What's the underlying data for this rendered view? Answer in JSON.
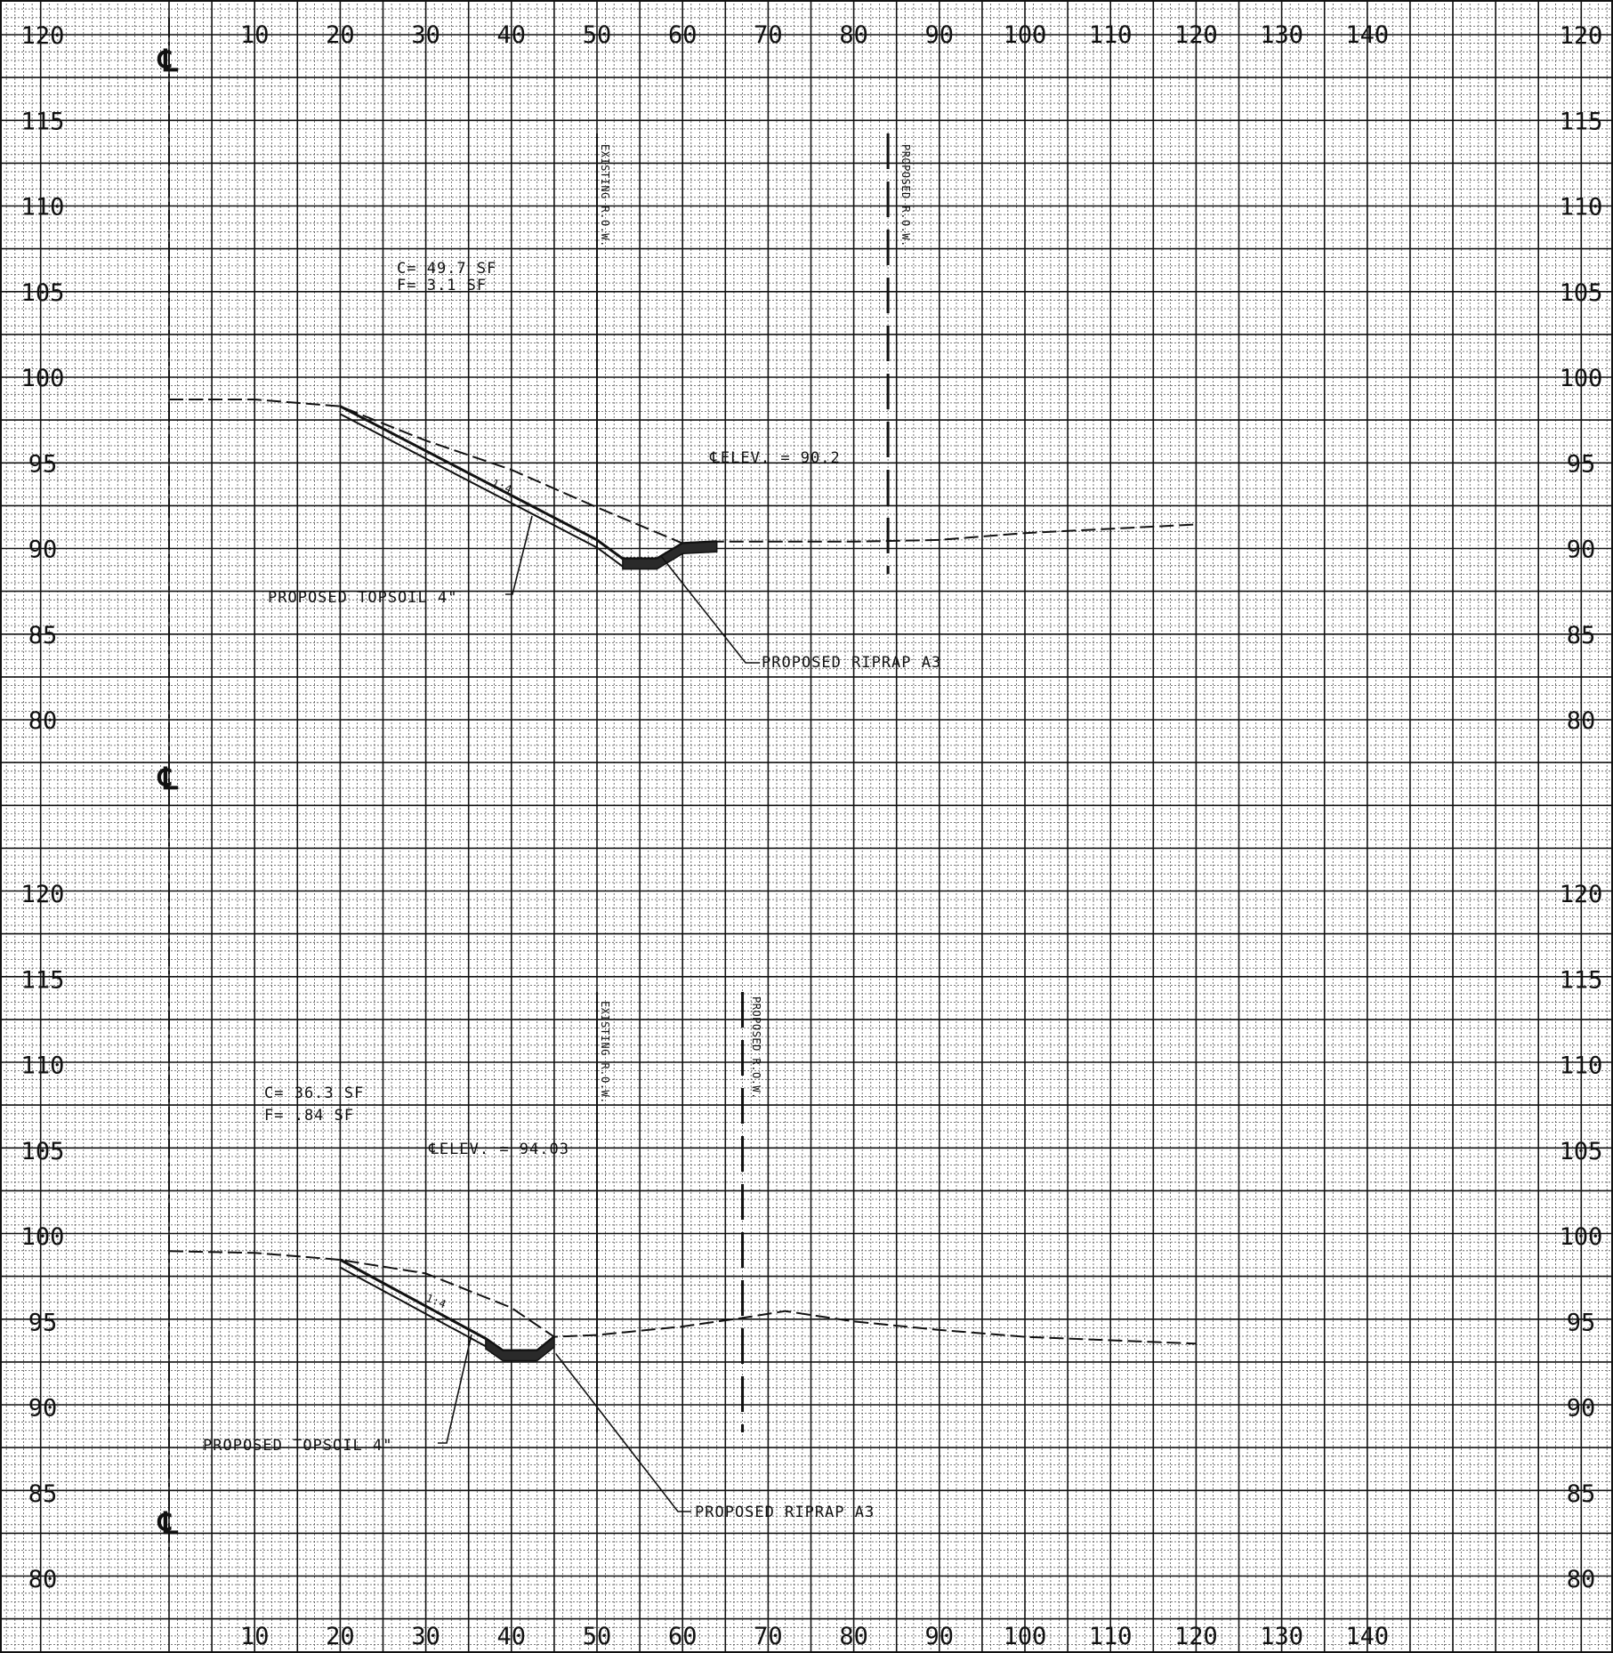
{
  "sheet": {
    "x_ticks": [
      10,
      20,
      30,
      40,
      50,
      60,
      70,
      80,
      90,
      100,
      110,
      120,
      130,
      140
    ],
    "y_ticks": [
      120,
      115,
      110,
      105,
      100,
      95,
      90,
      85,
      80
    ],
    "centerline_symbol": "℄"
  },
  "sections": [
    {
      "id": "upper",
      "areas": {
        "cut": "C= 49.7 SF",
        "fill": "F= 3.1 SF"
      },
      "cl_elev": "℄ELEV. = 90.2",
      "existing_row_label": "EXISTING R.O.W.",
      "existing_row_offset": 50,
      "proposed_row_label": "PROPOSED R.O.W.",
      "proposed_row_offset": 84,
      "slope_label": "1:4",
      "topsoil_label": "PROPOSED TOPSOIL 4\"",
      "riprap_label": "PROPOSED RIPRAP A3",
      "existing_ground": [
        [
          0,
          98.7
        ],
        [
          10,
          98.7
        ],
        [
          20,
          98.3
        ],
        [
          30,
          96.3
        ],
        [
          40,
          94.6
        ],
        [
          50,
          92.4
        ],
        [
          60,
          90.3
        ],
        [
          64,
          90.4
        ],
        [
          80,
          90.4
        ],
        [
          90,
          90.5
        ],
        [
          100,
          90.9
        ],
        [
          120,
          91.4
        ]
      ],
      "proposed_grade": [
        [
          20,
          98.3
        ],
        [
          50,
          90.5
        ],
        [
          53,
          89.4
        ],
        [
          57,
          89.4
        ],
        [
          60,
          90.3
        ],
        [
          64,
          90.4
        ]
      ]
    },
    {
      "id": "lower",
      "areas": {
        "cut": "C= 36.3 SF",
        "fill": "F= .84 SF"
      },
      "cl_elev": "℄ELEV. = 94.03",
      "existing_row_label": "EXISTING R.O.W.",
      "existing_row_offset": 50,
      "proposed_row_label": "PROPOSED R.O.W.",
      "proposed_row_offset": 67,
      "slope_label": "1:4",
      "topsoil_label": "PROPOSED TOPSOIL 4\"",
      "riprap_label": "PROPOSED RIPRAP A3",
      "existing_ground": [
        [
          0,
          99.1
        ],
        [
          10,
          99.0
        ],
        [
          20,
          98.6
        ],
        [
          30,
          97.8
        ],
        [
          40,
          95.8
        ],
        [
          45,
          94.1
        ],
        [
          50,
          94.2
        ],
        [
          60,
          94.7
        ],
        [
          67,
          95.2
        ],
        [
          72,
          95.6
        ],
        [
          80,
          95.0
        ],
        [
          90,
          94.5
        ],
        [
          100,
          94.1
        ],
        [
          120,
          93.7
        ]
      ],
      "proposed_grade": [
        [
          20,
          98.6
        ],
        [
          37,
          94.0
        ],
        [
          39,
          93.3
        ],
        [
          43,
          93.3
        ],
        [
          45,
          94.1
        ]
      ]
    }
  ]
}
